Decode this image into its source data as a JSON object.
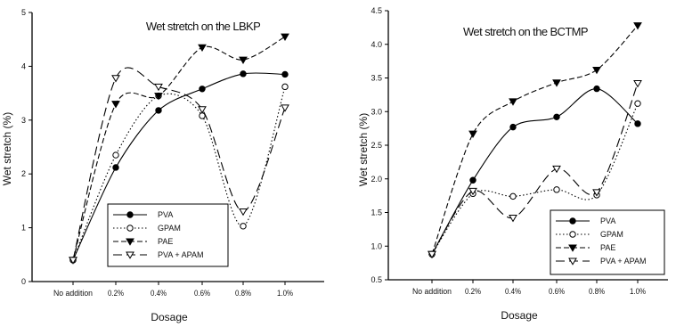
{
  "chart_data": [
    {
      "type": "line",
      "title": "Wet stretch on the LBKP",
      "xlabel": "Dosage",
      "ylabel": "Wet stretch (%)",
      "categories": [
        "No addition",
        "0.2%",
        "0.4%",
        "0.6%",
        "0.8%",
        "1.0%"
      ],
      "ylim": [
        0,
        5
      ],
      "yticks": [
        "0",
        "1",
        "2",
        "3",
        "4",
        "5"
      ],
      "legend_position": "bottom-right",
      "series": [
        {
          "name": "PVA",
          "values": [
            0.4,
            2.12,
            3.18,
            3.58,
            3.86,
            3.85
          ],
          "marker": "filled-circle",
          "dash": "solid"
        },
        {
          "name": "GPAM",
          "values": [
            0.4,
            2.35,
            3.45,
            3.08,
            1.03,
            3.62
          ],
          "marker": "open-circle",
          "dash": "dotted"
        },
        {
          "name": "PAE",
          "values": [
            0.4,
            3.3,
            3.45,
            4.35,
            4.12,
            4.55
          ],
          "marker": "filled-triangle-down",
          "dash": "dashed"
        },
        {
          "name": "PVA + APAM",
          "values": [
            0.4,
            3.78,
            3.62,
            3.2,
            1.3,
            3.23
          ],
          "marker": "open-triangle-down",
          "dash": "long-dash"
        }
      ]
    },
    {
      "type": "line",
      "title": "Wet stretch on the BCTMP",
      "xlabel": "Dosage",
      "ylabel": "Wet stretch (%)",
      "categories": [
        "No addition",
        "0.2%",
        "0.4%",
        "0.6%",
        "0.8%",
        "1.0%"
      ],
      "ylim": [
        0.5,
        4.5
      ],
      "yticks": [
        "0.5",
        "1.0",
        "1.5",
        "2.0",
        "2.5",
        "3.0",
        "3.5",
        "4.0",
        "4.5"
      ],
      "legend_position": "bottom-right",
      "series": [
        {
          "name": "PVA",
          "values": [
            0.88,
            1.98,
            2.77,
            2.92,
            3.34,
            2.82
          ],
          "marker": "filled-circle",
          "dash": "solid"
        },
        {
          "name": "GPAM",
          "values": [
            0.88,
            1.78,
            1.74,
            1.84,
            1.76,
            3.12
          ],
          "marker": "open-circle",
          "dash": "dotted"
        },
        {
          "name": "PAE",
          "values": [
            0.88,
            2.67,
            3.15,
            3.43,
            3.62,
            4.28
          ],
          "marker": "filled-triangle-down",
          "dash": "dashed"
        },
        {
          "name": "PVA + APAM",
          "values": [
            0.88,
            1.82,
            1.42,
            2.15,
            1.8,
            3.42
          ],
          "marker": "open-triangle-down",
          "dash": "long-dash"
        }
      ]
    }
  ]
}
